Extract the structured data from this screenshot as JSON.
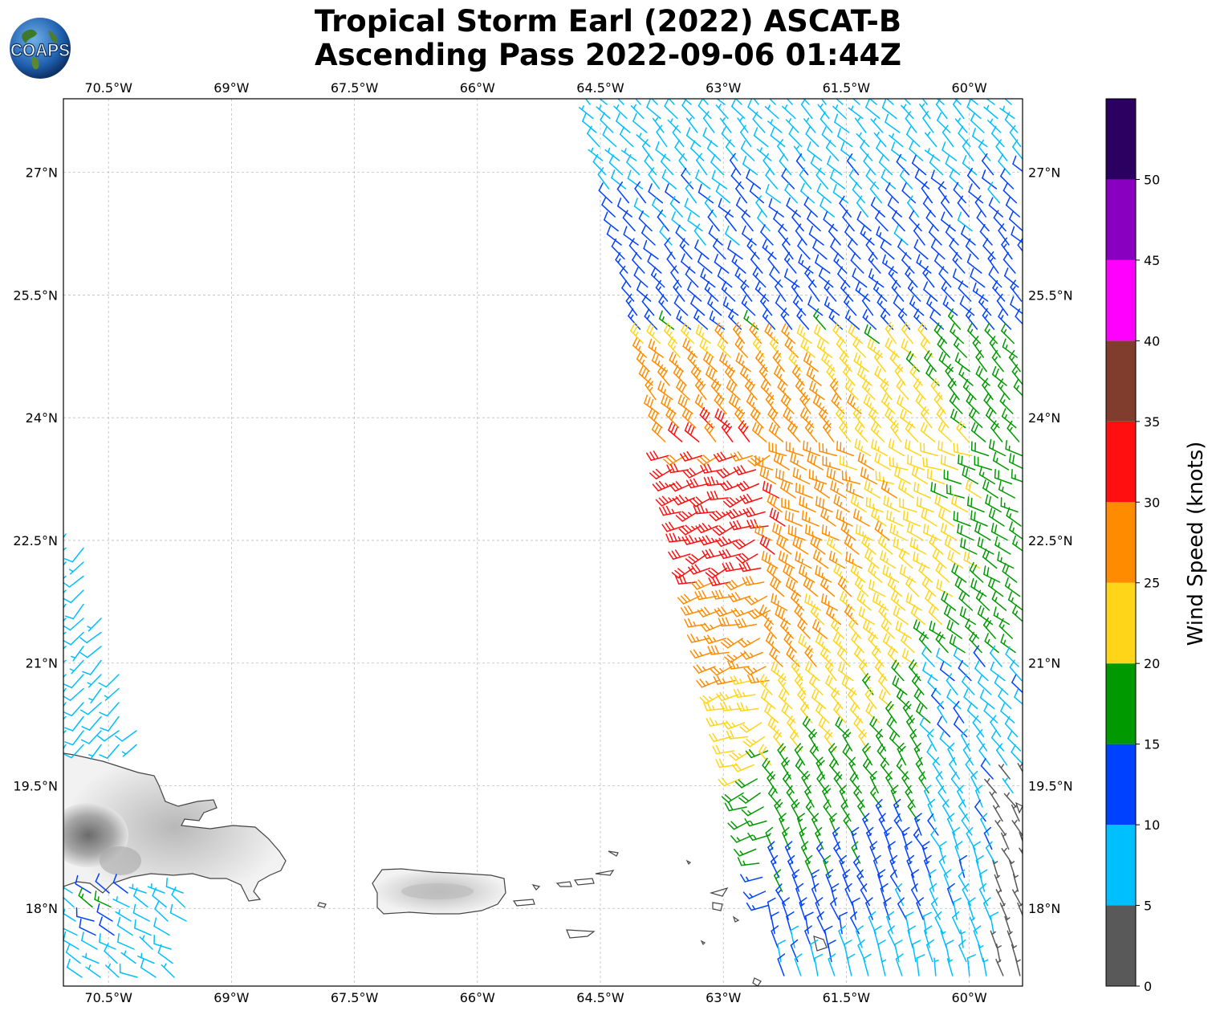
{
  "title": {
    "line1": "Tropical Storm Earl (2022) ASCAT-B",
    "line2": "Ascending Pass 2022-09-06 01:44Z"
  },
  "logo": {
    "text": "COAPS",
    "icon": "globe-icon"
  },
  "map": {
    "lon_labels": [
      "70.5°W",
      "69°W",
      "67.5°W",
      "66°W",
      "64.5°W",
      "63°W",
      "61.5°W",
      "60°W"
    ],
    "lat_labels": [
      "27°N",
      "25.5°N",
      "24°N",
      "22.5°N",
      "21°N",
      "19.5°N",
      "18°N"
    ],
    "lon_range": [
      -71.05,
      -59.35
    ],
    "lat_range": [
      17.05,
      27.9
    ],
    "grid": true
  },
  "colorbar": {
    "label": "Wind Speed (knots)",
    "ticks": [
      "0",
      "5",
      "10",
      "15",
      "20",
      "25",
      "30",
      "35",
      "40",
      "45",
      "50"
    ],
    "bins": [
      {
        "range": [
          0,
          5
        ],
        "color": "#595959"
      },
      {
        "range": [
          5,
          10
        ],
        "color": "#00bfff"
      },
      {
        "range": [
          10,
          15
        ],
        "color": "#0041ff"
      },
      {
        "range": [
          15,
          20
        ],
        "color": "#009a00"
      },
      {
        "range": [
          20,
          25
        ],
        "color": "#ffd51a"
      },
      {
        "range": [
          25,
          30
        ],
        "color": "#ff8c00"
      },
      {
        "range": [
          30,
          35
        ],
        "color": "#ff0f0f"
      },
      {
        "range": [
          35,
          40
        ],
        "color": "#803c2c"
      },
      {
        "range": [
          40,
          45
        ],
        "color": "#ff00ff"
      },
      {
        "range": [
          45,
          50
        ],
        "color": "#8a00c0"
      },
      {
        "range": [
          50,
          55
        ],
        "color": "#2a0060"
      }
    ]
  }
}
